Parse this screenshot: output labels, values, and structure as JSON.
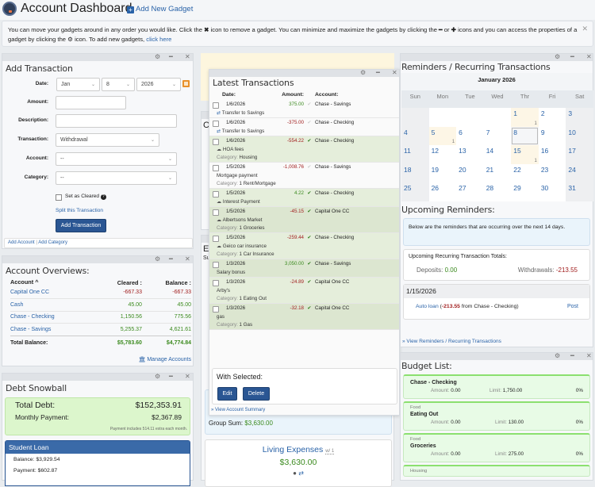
{
  "header": {
    "title": "Account Dashboard",
    "add_gadget": "Add New Gadget"
  },
  "info": {
    "text_1": "You can move your gadgets around in any order you would like. Click the ",
    "icon_close": "✖",
    "text_2": " icon to remove a gadget. You can minimize and maximize the gadgets by clicking the ",
    "icon_min": "━",
    "text_3": " or ",
    "icon_plus": "✚",
    "text_4": " icons and you can access the properties of a gadget by clicking the ",
    "icon_gear": "⚙",
    "text_5": " icon. To add new gadgets, ",
    "link": "click here",
    "close": "✕"
  },
  "gadget_controls": {
    "gear": "⚙",
    "min": "━",
    "close": "✕"
  },
  "add_transaction": {
    "title": "Add Transaction",
    "labels": {
      "date": "Date:",
      "amount": "Amount:",
      "description": "Description:",
      "transaction": "Transaction:",
      "account": "Account:",
      "category": "Category:"
    },
    "date": {
      "month": "Jan",
      "day": "8",
      "year": "2026"
    },
    "amount": "",
    "description": "",
    "transaction": "Withdrawal",
    "account": "--",
    "category": "--",
    "cleared_label": "Set as Cleared",
    "split_link": "Split this Transaction",
    "submit": "Add Transaction",
    "footer": {
      "add_account": "Add Account",
      "sep": "|",
      "add_category": "Add Category"
    }
  },
  "account_overviews": {
    "title": "Account Overviews:",
    "headers": {
      "account": "Account",
      "cleared": "Cleared :",
      "balance": "Balance :"
    },
    "rows": [
      {
        "name": "Capital One CC",
        "cleared": "-667.33",
        "balance": "-667.33",
        "neg": true
      },
      {
        "name": "Cash",
        "cleared": "45.00",
        "balance": "45.00",
        "neg": false
      },
      {
        "name": "Chase - Checking",
        "cleared": "1,150.56",
        "balance": "775.56",
        "neg": false
      },
      {
        "name": "Chase - Savings",
        "cleared": "5,255.37",
        "balance": "4,621.61",
        "neg": false
      }
    ],
    "total": {
      "label": "Total Balance:",
      "cleared": "$5,783.60",
      "balance": "$4,774.84"
    },
    "manage": "Manage Accounts"
  },
  "debt_snowball": {
    "title": "Debt Snowball",
    "total_debt_label": "Total Debt:",
    "total_debt": "$152,353.91",
    "monthly_label": "Monthly Payment:",
    "monthly": "$2,367.89",
    "note": "Payment includes 514.11 extra each month.",
    "loan": {
      "name": "Student Loan",
      "balance": "Balance: $3,929.54",
      "payment": "Payment: $602.87"
    }
  },
  "latest_transactions": {
    "title": "Latest Transactions",
    "headers": {
      "date": "Date:",
      "amount": "Amount:",
      "account": "Account:"
    },
    "rows": [
      {
        "date": "1/6/2026",
        "amount": "375.00",
        "account": "Chase - Savings",
        "desc": "Transfer to Savings",
        "category": "",
        "cleared": false,
        "icon": "transfer"
      },
      {
        "date": "1/6/2026",
        "amount": "-375.00",
        "account": "Chase - Checking",
        "desc": "Transfer to Savings",
        "category": "",
        "cleared": false,
        "icon": "transfer"
      },
      {
        "date": "1/6/2026",
        "amount": "-554.22",
        "account": "Chase - Checking",
        "desc": "HOA fees",
        "category": "Housing",
        "cleared": true,
        "icon": "cloud"
      },
      {
        "date": "1/5/2026",
        "amount": "-1,008.76",
        "account": "Chase - Savings",
        "desc": "Mortgage payment",
        "category": "1 Rent/Mortgage",
        "cleared": false,
        "icon": ""
      },
      {
        "date": "1/5/2026",
        "amount": "4.22",
        "account": "Chase - Checking",
        "desc": "Interest Payment",
        "category": "",
        "cleared": true,
        "icon": "cloud"
      },
      {
        "date": "1/5/2026",
        "amount": "-45.15",
        "account": "Capital One CC",
        "desc": "Albertsons Market",
        "category": "1 Groceries",
        "cleared": true,
        "icon": "cloud"
      },
      {
        "date": "1/5/2026",
        "amount": "-259.44",
        "account": "Chase - Checking",
        "desc": "Geico car insurance",
        "category": "1 Car Insurance",
        "cleared": true,
        "icon": "cloud"
      },
      {
        "date": "1/3/2026",
        "amount": "3,050.00",
        "account": "Chase - Savings",
        "desc": "Salary bonus",
        "category": "",
        "cleared": true,
        "icon": ""
      },
      {
        "date": "1/3/2026",
        "amount": "-24.89",
        "account": "Capital One CC",
        "desc": "Arby's",
        "category": "1 Eating Out",
        "cleared": true,
        "icon": ""
      },
      {
        "date": "1/3/2026",
        "amount": "-32.18",
        "account": "Capital One CC",
        "desc": "gas",
        "category": "1 Gas",
        "cleared": true,
        "icon": ""
      }
    ],
    "category_prefix": "Category: ",
    "with_selected": "With Selected:",
    "edit": "Edit",
    "delete": "Delete",
    "view_summary": "View Account Summary"
  },
  "account_groups": {
    "peek_c": "C",
    "peek_e": "E",
    "peek_s": "Su",
    "group_sum_label": "Group Sum: ",
    "group_sum": "$3,630.00",
    "group_name": "Living Expenses",
    "group_badge": "w/ 1",
    "group_amount": "$3,630.00"
  },
  "reminders": {
    "title": "Reminders / Recurring Transactions",
    "month": "January 2026",
    "weekdays": [
      "Sun",
      "Mon",
      "Tue",
      "Wed",
      "Thr",
      "Fri",
      "Sat"
    ],
    "weeks": [
      [
        {
          "d": ""
        },
        {
          "d": ""
        },
        {
          "d": ""
        },
        {
          "d": ""
        },
        {
          "d": "1",
          "n": "1",
          "hl": true
        },
        {
          "d": "2"
        },
        {
          "d": "3"
        }
      ],
      [
        {
          "d": "4"
        },
        {
          "d": "5",
          "n": "1",
          "hl": true
        },
        {
          "d": "6"
        },
        {
          "d": "7"
        },
        {
          "d": "8",
          "today": true
        },
        {
          "d": "9"
        },
        {
          "d": "10"
        }
      ],
      [
        {
          "d": "11"
        },
        {
          "d": "12"
        },
        {
          "d": "13"
        },
        {
          "d": "14"
        },
        {
          "d": "15",
          "n": "1",
          "hl": true
        },
        {
          "d": "16"
        },
        {
          "d": "17"
        }
      ],
      [
        {
          "d": "18"
        },
        {
          "d": "19"
        },
        {
          "d": "20"
        },
        {
          "d": "21"
        },
        {
          "d": "22"
        },
        {
          "d": "23"
        },
        {
          "d": "24"
        }
      ],
      [
        {
          "d": "25"
        },
        {
          "d": "26"
        },
        {
          "d": "27"
        },
        {
          "d": "28"
        },
        {
          "d": "29"
        },
        {
          "d": "30"
        },
        {
          "d": "31"
        }
      ]
    ],
    "upcoming_title": "Upcoming Reminders:",
    "upcoming_note": "Below are the reminders that are occurring over the next 14 days.",
    "totals_title": "Upcoming Recurring Transaction Totals:",
    "deposits_label": "Deposits: ",
    "deposits": "0.00",
    "withdrawals_label": "Withdrawals: ",
    "withdrawals": "-213.55",
    "date_group": "1/15/2026",
    "item": {
      "name": "Auto loan",
      "open": " (",
      "amount": "-213.55",
      "rest": " from Chase - Checking)",
      "post": "Post"
    },
    "view_link": "View Reminders / Recurring Transactions"
  },
  "budget_list": {
    "title": "Budget List:",
    "items": [
      {
        "group": "",
        "name": "Chase - Checking",
        "amount": "0.00",
        "limit": "1,750.00",
        "pct": "0%"
      },
      {
        "group": "Food",
        "name": "Eating Out",
        "amount": "0.00",
        "limit": "130.00",
        "pct": "0%"
      },
      {
        "group": "Food",
        "name": "Groceries",
        "amount": "0.00",
        "limit": "275.00",
        "pct": "0%"
      },
      {
        "group": "Housing",
        "name": "",
        "amount": "",
        "limit": "",
        "pct": ""
      }
    ],
    "amount_label": "Amount: ",
    "limit_label": "Limit: "
  }
}
